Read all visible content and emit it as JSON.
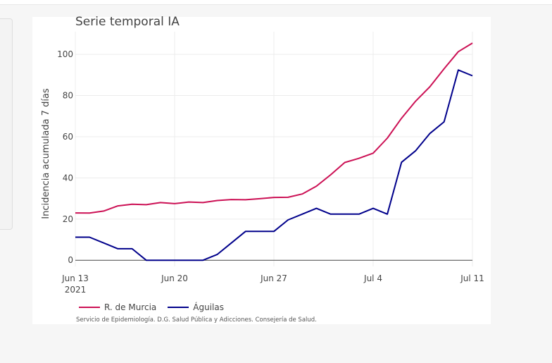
{
  "chart_data": {
    "type": "line",
    "title": "Serie temporal IA",
    "ylabel": "Incidencia acumulada 7 días",
    "xlabel": "",
    "x_range": [
      "2021-06-13",
      "2021-07-11"
    ],
    "ylim": [
      -3,
      111
    ],
    "y_ticks": [
      0,
      20,
      40,
      60,
      80,
      100
    ],
    "x_ticks": [
      {
        "date": "2021-06-13",
        "label": "Jun 13",
        "sublabel": "2021"
      },
      {
        "date": "2021-06-20",
        "label": "Jun 20",
        "sublabel": ""
      },
      {
        "date": "2021-06-27",
        "label": "Jun 27",
        "sublabel": ""
      },
      {
        "date": "2021-07-04",
        "label": "Jul 4",
        "sublabel": ""
      },
      {
        "date": "2021-07-11",
        "label": "Jul 11",
        "sublabel": ""
      }
    ],
    "grid": true,
    "legend_position": "bottom-left",
    "series": [
      {
        "name": "R. de Murcia",
        "color": "#cc1155",
        "points": [
          [
            "2021-06-13",
            23.0
          ],
          [
            "2021-06-14",
            22.9
          ],
          [
            "2021-06-15",
            23.9
          ],
          [
            "2021-06-16",
            26.4
          ],
          [
            "2021-06-17",
            27.2
          ],
          [
            "2021-06-18",
            27.0
          ],
          [
            "2021-06-19",
            28.0
          ],
          [
            "2021-06-20",
            27.5
          ],
          [
            "2021-06-21",
            28.3
          ],
          [
            "2021-06-22",
            28.0
          ],
          [
            "2021-06-23",
            29.0
          ],
          [
            "2021-06-24",
            29.5
          ],
          [
            "2021-06-25",
            29.4
          ],
          [
            "2021-06-26",
            29.9
          ],
          [
            "2021-06-27",
            30.5
          ],
          [
            "2021-06-28",
            30.6
          ],
          [
            "2021-06-29",
            32.2
          ],
          [
            "2021-06-30",
            36.0
          ],
          [
            "2021-07-01",
            41.5
          ],
          [
            "2021-07-02",
            47.5
          ],
          [
            "2021-07-03",
            49.5
          ],
          [
            "2021-07-04",
            52.0
          ],
          [
            "2021-07-05",
            59.3
          ],
          [
            "2021-07-06",
            69.0
          ],
          [
            "2021-07-07",
            77.3
          ],
          [
            "2021-07-08",
            84.3
          ],
          [
            "2021-07-09",
            93.0
          ],
          [
            "2021-07-10",
            101.3
          ],
          [
            "2021-07-11",
            105.5
          ]
        ]
      },
      {
        "name": "Águilas",
        "color": "#00008b",
        "points": [
          [
            "2021-06-13",
            11.2
          ],
          [
            "2021-06-14",
            11.2
          ],
          [
            "2021-06-15",
            8.4
          ],
          [
            "2021-06-16",
            5.6
          ],
          [
            "2021-06-17",
            5.6
          ],
          [
            "2021-06-18",
            0
          ],
          [
            "2021-06-19",
            0
          ],
          [
            "2021-06-20",
            0
          ],
          [
            "2021-06-21",
            0
          ],
          [
            "2021-06-22",
            0
          ],
          [
            "2021-06-23",
            2.8
          ],
          [
            "2021-06-24",
            8.4
          ],
          [
            "2021-06-25",
            14.0
          ],
          [
            "2021-06-26",
            14.0
          ],
          [
            "2021-06-27",
            14.0
          ],
          [
            "2021-06-28",
            19.6
          ],
          [
            "2021-06-29",
            22.4
          ],
          [
            "2021-06-30",
            25.2
          ],
          [
            "2021-07-01",
            22.4
          ],
          [
            "2021-07-02",
            22.4
          ],
          [
            "2021-07-03",
            22.4
          ],
          [
            "2021-07-04",
            25.2
          ],
          [
            "2021-07-05",
            22.4
          ],
          [
            "2021-07-06",
            47.6
          ],
          [
            "2021-07-07",
            53.2
          ],
          [
            "2021-07-08",
            61.6
          ],
          [
            "2021-07-09",
            67.2
          ],
          [
            "2021-07-10",
            92.4
          ],
          [
            "2021-07-11",
            89.6
          ]
        ]
      }
    ],
    "source_note": "Servicio de Epidemiología. D.G. Salud Pública y Adicciones. Consejería de Salud."
  }
}
